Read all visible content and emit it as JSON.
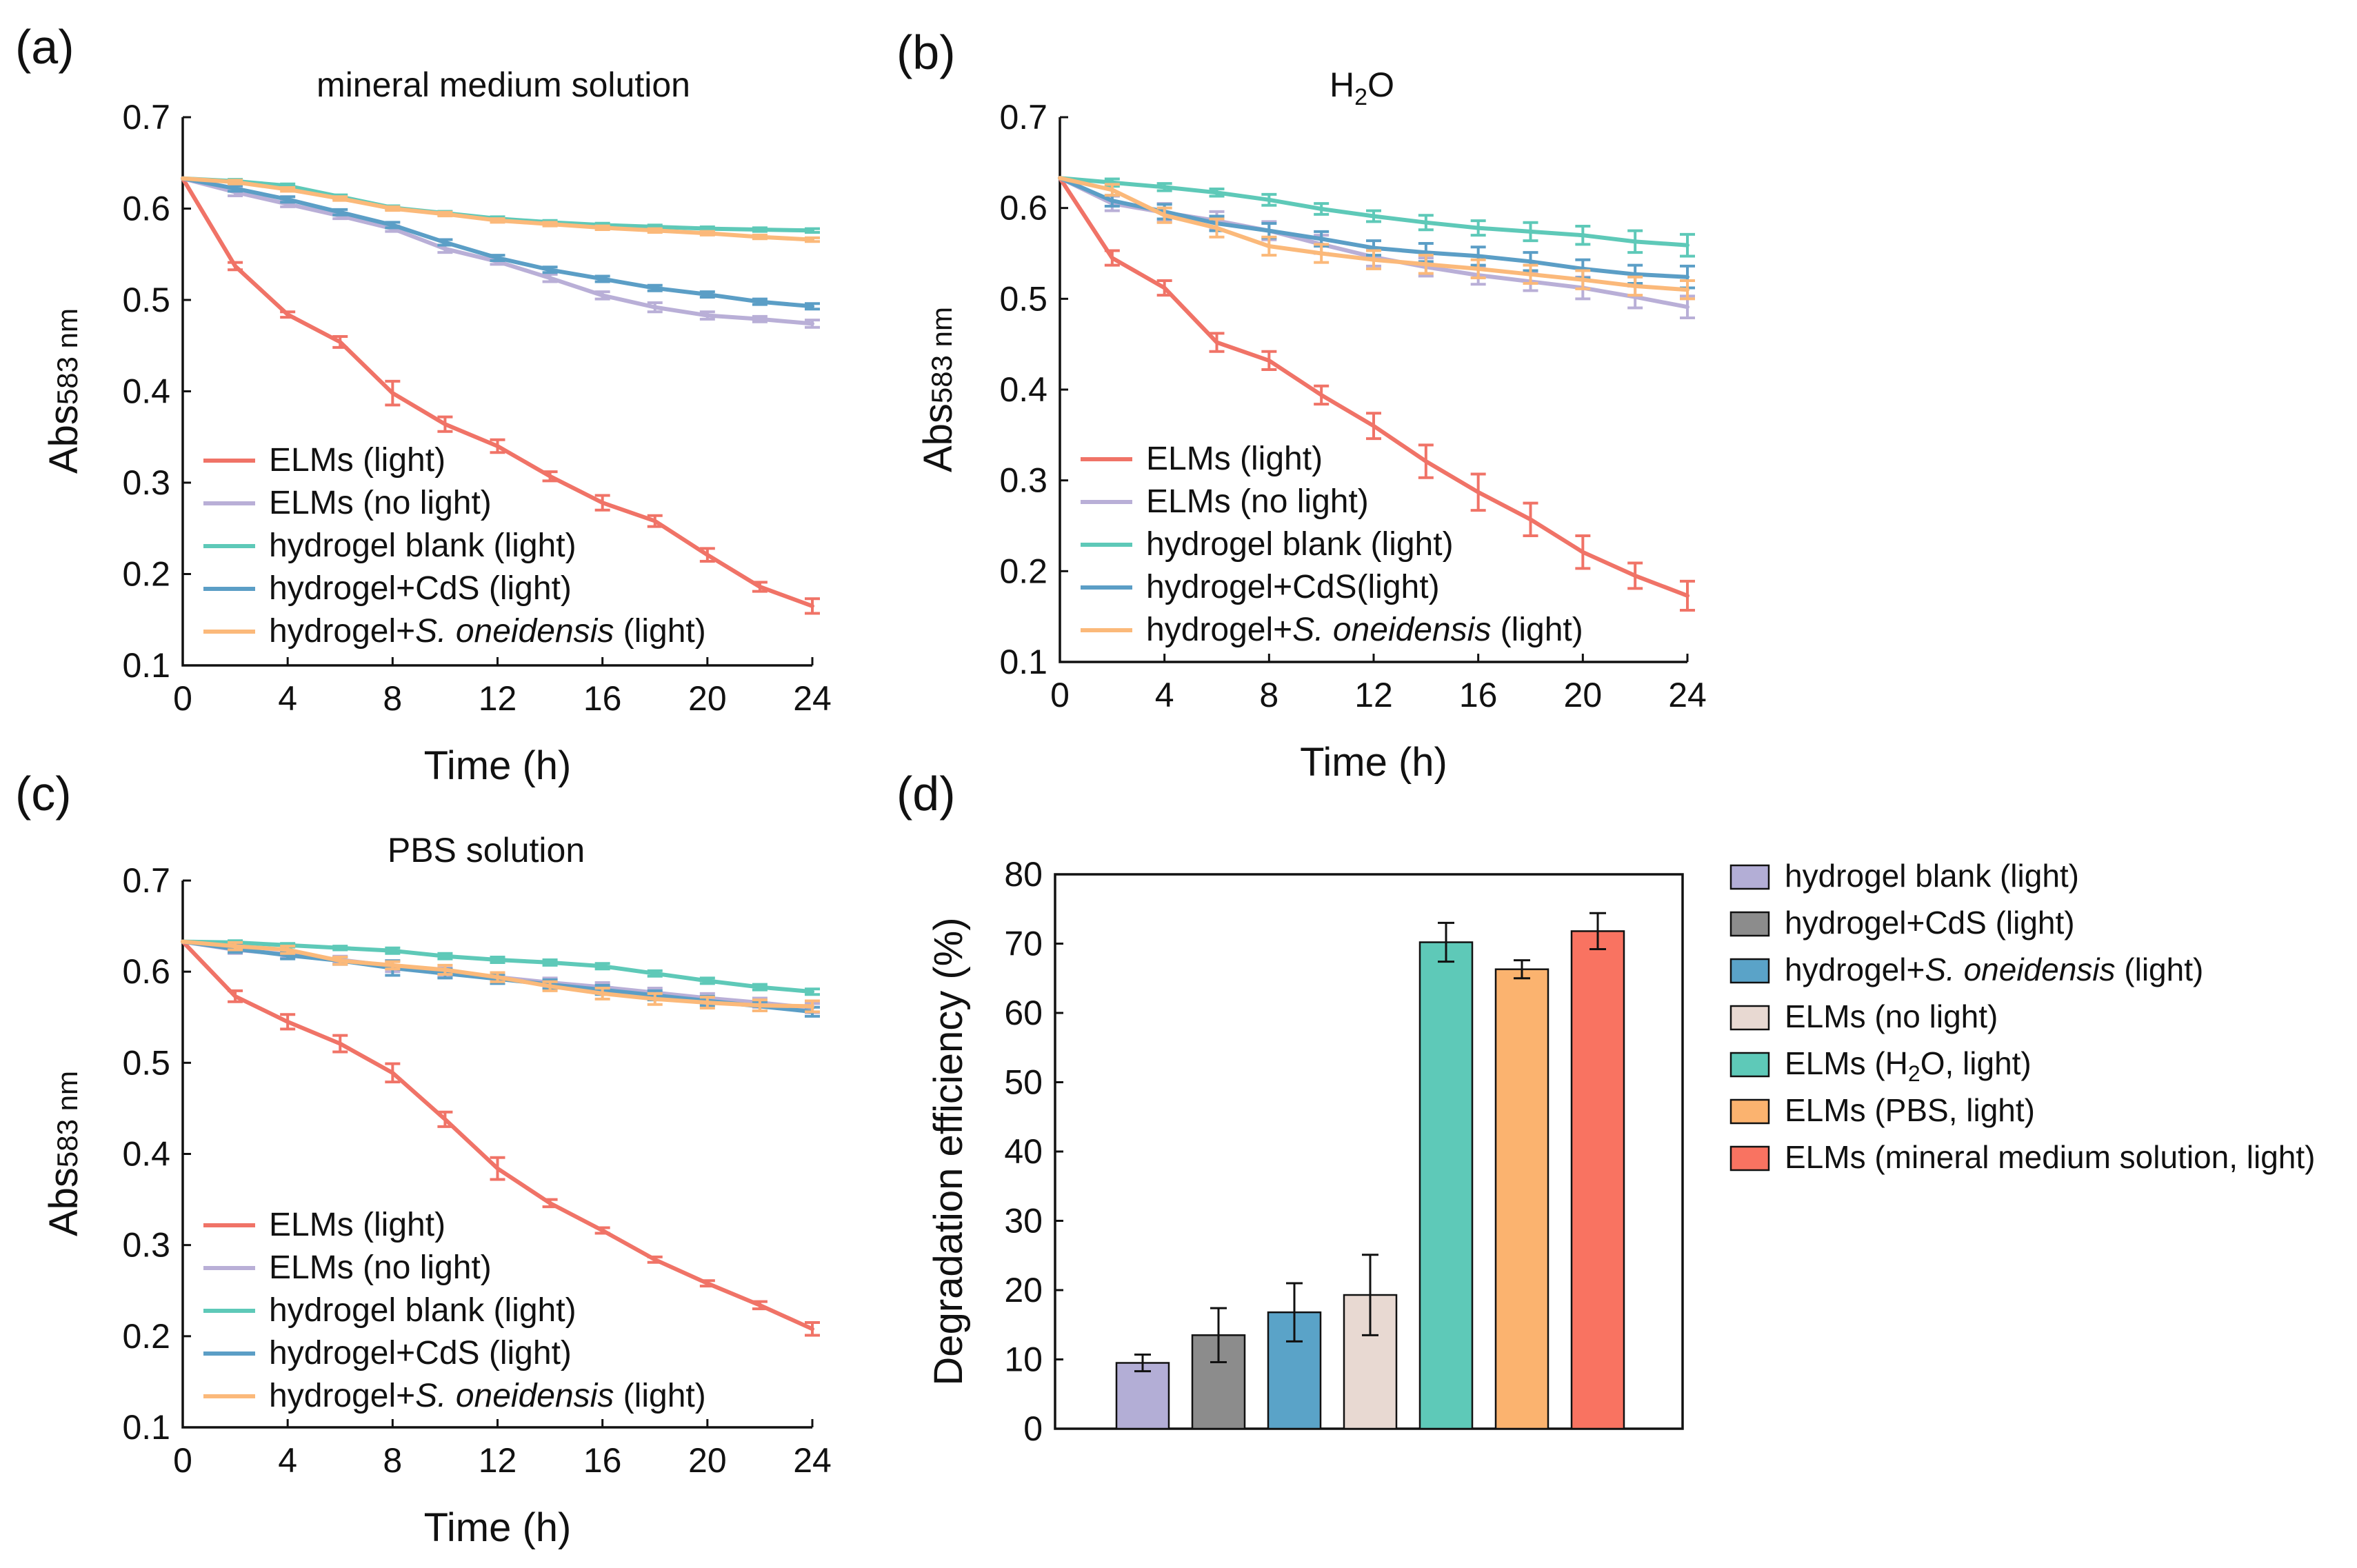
{
  "chart_data": [
    {
      "panel_label": "(a)",
      "type": "line",
      "title": "mineral medium solution",
      "xlabel": "Time (h)",
      "ylabel": "Abs583 nm",
      "ylabel_parts": {
        "prefix": "Abs",
        "sub": "583",
        "suffix": " nm"
      },
      "xlim": [
        0,
        24
      ],
      "ylim": [
        0.1,
        0.7
      ],
      "xticks": [
        0,
        4,
        8,
        12,
        16,
        20,
        24
      ],
      "yticks": [
        0.1,
        0.2,
        0.3,
        0.4,
        0.5,
        0.6,
        0.7
      ],
      "legend_position": "bottom-left",
      "x": [
        0,
        2,
        4,
        6,
        8,
        10,
        12,
        14,
        16,
        18,
        20,
        22,
        24
      ],
      "series": [
        {
          "name": "ELMs (light)",
          "legend": [
            {
              "t": "ELMs (light)",
              "italic": false
            }
          ],
          "color": "#f07367",
          "values": [
            0.633,
            0.537,
            0.484,
            0.454,
            0.398,
            0.364,
            0.34,
            0.307,
            0.278,
            0.258,
            0.221,
            0.186,
            0.165
          ],
          "errors": [
            0,
            0.004,
            0.003,
            0.006,
            0.013,
            0.008,
            0.007,
            0.005,
            0.008,
            0.006,
            0.007,
            0.005,
            0.008
          ]
        },
        {
          "name": "ELMs (no light)",
          "legend": [
            {
              "t": "ELMs (no light)",
              "italic": false
            }
          ],
          "color": "#b9afd7",
          "values": [
            0.633,
            0.618,
            0.605,
            0.592,
            0.578,
            0.556,
            0.542,
            0.524,
            0.505,
            0.492,
            0.483,
            0.479,
            0.474
          ],
          "errors": [
            0,
            0.004,
            0.003,
            0.003,
            0.003,
            0.004,
            0.003,
            0.004,
            0.004,
            0.005,
            0.004,
            0.003,
            0.004
          ]
        },
        {
          "name": "hydrogel blank (light)",
          "legend": [
            {
              "t": "hydrogel blank (light)",
              "italic": false
            }
          ],
          "color": "#5ec9b8",
          "values": [
            0.633,
            0.63,
            0.625,
            0.613,
            0.601,
            0.595,
            0.589,
            0.585,
            0.582,
            0.58,
            0.578,
            0.577,
            0.576
          ],
          "errors": [
            0,
            0.002,
            0.002,
            0.002,
            0.002,
            0.002,
            0.002,
            0.002,
            0.002,
            0.002,
            0.002,
            0.002,
            0.002
          ]
        },
        {
          "name": "hydrogel+CdS (light)",
          "legend": [
            {
              "t": "hydrogel+CdS (light)",
              "italic": false
            }
          ],
          "color": "#5b9ec6",
          "values": [
            0.633,
            0.622,
            0.61,
            0.596,
            0.582,
            0.563,
            0.546,
            0.533,
            0.523,
            0.513,
            0.506,
            0.498,
            0.493
          ],
          "errors": [
            0,
            0.003,
            0.003,
            0.003,
            0.003,
            0.003,
            0.003,
            0.003,
            0.003,
            0.003,
            0.003,
            0.003,
            0.003
          ]
        },
        {
          "name": "hydrogel+S. oneidensis (light)",
          "legend": [
            {
              "t": "hydrogel+",
              "italic": false
            },
            {
              "t": "S. oneidensis",
              "italic": true
            },
            {
              "t": " (light)",
              "italic": false
            }
          ],
          "color": "#fbb97a",
          "values": [
            0.633,
            0.629,
            0.621,
            0.611,
            0.6,
            0.594,
            0.587,
            0.583,
            0.579,
            0.576,
            0.573,
            0.569,
            0.566
          ],
          "errors": [
            0,
            0.002,
            0.002,
            0.002,
            0.002,
            0.002,
            0.002,
            0.002,
            0.002,
            0.002,
            0.002,
            0.002,
            0.002
          ]
        }
      ]
    },
    {
      "panel_label": "(b)",
      "type": "line",
      "title": "H2O",
      "title_parts": {
        "prefix": "H",
        "sub": "2",
        "suffix": "O"
      },
      "xlabel": "Time (h)",
      "ylabel": "Abs583 nm",
      "ylabel_parts": {
        "prefix": "Abs",
        "sub": "583",
        "suffix": " nm"
      },
      "xlim": [
        0,
        24
      ],
      "ylim": [
        0.1,
        0.7
      ],
      "xticks": [
        0,
        4,
        8,
        12,
        16,
        20,
        24
      ],
      "yticks": [
        0.1,
        0.2,
        0.3,
        0.4,
        0.5,
        0.6,
        0.7
      ],
      "legend_position": "bottom-left",
      "x": [
        0,
        2,
        4,
        6,
        8,
        10,
        12,
        14,
        16,
        18,
        20,
        22,
        24
      ],
      "series": [
        {
          "name": "ELMs (light)",
          "legend": [
            {
              "t": "ELMs (light)",
              "italic": false
            }
          ],
          "color": "#f07367",
          "values": [
            0.633,
            0.545,
            0.512,
            0.452,
            0.432,
            0.394,
            0.36,
            0.321,
            0.287,
            0.257,
            0.221,
            0.195,
            0.173
          ],
          "errors": [
            0,
            0.008,
            0.008,
            0.01,
            0.01,
            0.01,
            0.014,
            0.018,
            0.02,
            0.018,
            0.018,
            0.014,
            0.016
          ]
        },
        {
          "name": "ELMs (no light)",
          "legend": [
            {
              "t": "ELMs (no light)",
              "italic": false
            }
          ],
          "color": "#b9afd7",
          "values": [
            0.633,
            0.605,
            0.595,
            0.586,
            0.575,
            0.56,
            0.546,
            0.535,
            0.526,
            0.519,
            0.512,
            0.502,
            0.491
          ],
          "errors": [
            0,
            0.008,
            0.01,
            0.01,
            0.01,
            0.01,
            0.01,
            0.01,
            0.01,
            0.01,
            0.012,
            0.012,
            0.012
          ]
        },
        {
          "name": "hydrogel blank (light)",
          "legend": [
            {
              "t": "hydrogel blank (light)",
              "italic": false
            }
          ],
          "color": "#5ec9b8",
          "values": [
            0.633,
            0.628,
            0.623,
            0.617,
            0.609,
            0.599,
            0.591,
            0.584,
            0.578,
            0.574,
            0.57,
            0.563,
            0.559
          ],
          "errors": [
            0,
            0.004,
            0.004,
            0.004,
            0.006,
            0.006,
            0.006,
            0.008,
            0.008,
            0.01,
            0.01,
            0.012,
            0.012
          ]
        },
        {
          "name": "hydrogel+CdS(light)",
          "legend": [
            {
              "t": "hydrogel+CdS(light)",
              "italic": false
            }
          ],
          "color": "#5b9ec6",
          "values": [
            0.633,
            0.608,
            0.596,
            0.583,
            0.575,
            0.566,
            0.556,
            0.551,
            0.547,
            0.541,
            0.533,
            0.527,
            0.524
          ],
          "errors": [
            0,
            0.006,
            0.008,
            0.008,
            0.008,
            0.008,
            0.008,
            0.01,
            0.01,
            0.01,
            0.01,
            0.01,
            0.012
          ]
        },
        {
          "name": "hydrogel+S. oneidensis (light)",
          "legend": [
            {
              "t": "hydrogel+",
              "italic": false
            },
            {
              "t": "S. oneidensis",
              "italic": true
            },
            {
              "t": " (light)",
              "italic": false
            }
          ],
          "color": "#fbb97a",
          "values": [
            0.633,
            0.62,
            0.592,
            0.578,
            0.558,
            0.55,
            0.543,
            0.538,
            0.533,
            0.527,
            0.521,
            0.514,
            0.51
          ],
          "errors": [
            0,
            0.006,
            0.008,
            0.01,
            0.01,
            0.01,
            0.01,
            0.01,
            0.01,
            0.01,
            0.01,
            0.01,
            0.01
          ]
        }
      ]
    },
    {
      "panel_label": "(c)",
      "type": "line",
      "title": "PBS solution",
      "xlabel": "Time (h)",
      "ylabel": "Abs583 nm",
      "ylabel_parts": {
        "prefix": "Abs",
        "sub": "583",
        "suffix": " nm"
      },
      "xlim": [
        0,
        24
      ],
      "ylim": [
        0.1,
        0.7
      ],
      "xticks": [
        0,
        4,
        8,
        12,
        16,
        20,
        24
      ],
      "yticks": [
        0.1,
        0.2,
        0.3,
        0.4,
        0.5,
        0.6,
        0.7
      ],
      "legend_position": "bottom-left",
      "x": [
        0,
        2,
        4,
        6,
        8,
        10,
        12,
        14,
        16,
        18,
        20,
        22,
        24
      ],
      "series": [
        {
          "name": "ELMs (light)",
          "legend": [
            {
              "t": "ELMs (light)",
              "italic": false
            }
          ],
          "color": "#f07367",
          "values": [
            0.633,
            0.573,
            0.545,
            0.521,
            0.489,
            0.438,
            0.384,
            0.346,
            0.316,
            0.284,
            0.258,
            0.234,
            0.208
          ],
          "errors": [
            0,
            0.006,
            0.008,
            0.009,
            0.01,
            0.008,
            0.012,
            0.004,
            0.003,
            0.003,
            0.003,
            0.004,
            0.007
          ]
        },
        {
          "name": "ELMs (no light)",
          "legend": [
            {
              "t": "ELMs (no light)",
              "italic": false
            }
          ],
          "color": "#b9afd7",
          "values": [
            0.633,
            0.624,
            0.619,
            0.613,
            0.606,
            0.599,
            0.594,
            0.588,
            0.583,
            0.577,
            0.571,
            0.566,
            0.56
          ],
          "errors": [
            0,
            0.004,
            0.004,
            0.004,
            0.006,
            0.005,
            0.005,
            0.005,
            0.005,
            0.005,
            0.005,
            0.005,
            0.005
          ]
        },
        {
          "name": "hydrogel blank (light)",
          "legend": [
            {
              "t": "hydrogel blank (light)",
              "italic": false
            }
          ],
          "color": "#5ec9b8",
          "values": [
            0.633,
            0.632,
            0.629,
            0.626,
            0.623,
            0.617,
            0.613,
            0.61,
            0.606,
            0.598,
            0.59,
            0.583,
            0.578
          ],
          "errors": [
            0,
            0.002,
            0.002,
            0.002,
            0.003,
            0.003,
            0.003,
            0.003,
            0.003,
            0.003,
            0.003,
            0.003,
            0.003
          ]
        },
        {
          "name": "hydrogel+CdS (light)",
          "legend": [
            {
              "t": "hydrogel+CdS (light)",
              "italic": false
            }
          ],
          "color": "#5b9ec6",
          "values": [
            0.633,
            0.625,
            0.618,
            0.612,
            0.604,
            0.598,
            0.592,
            0.586,
            0.58,
            0.574,
            0.568,
            0.562,
            0.556
          ],
          "errors": [
            0,
            0.004,
            0.004,
            0.004,
            0.008,
            0.005,
            0.005,
            0.005,
            0.005,
            0.005,
            0.005,
            0.005,
            0.005
          ]
        },
        {
          "name": "hydrogel+S. oneidensis (light)",
          "legend": [
            {
              "t": "hydrogel+",
              "italic": false
            },
            {
              "t": "S. oneidensis",
              "italic": true
            },
            {
              "t": " (light)",
              "italic": false
            }
          ],
          "color": "#fbb97a",
          "values": [
            0.633,
            0.628,
            0.624,
            0.612,
            0.607,
            0.602,
            0.594,
            0.584,
            0.576,
            0.57,
            0.566,
            0.563,
            0.562
          ],
          "errors": [
            0,
            0.004,
            0.004,
            0.004,
            0.004,
            0.005,
            0.005,
            0.005,
            0.006,
            0.006,
            0.006,
            0.006,
            0.006
          ]
        }
      ]
    },
    {
      "panel_label": "(d)",
      "type": "bar",
      "title": "",
      "xlabel": "",
      "ylabel": "Degradation efficiency (%)",
      "ylim": [
        0,
        80
      ],
      "yticks": [
        0,
        10,
        20,
        30,
        40,
        50,
        60,
        70,
        80
      ],
      "legend_position": "right",
      "categories": [
        "hydrogel blank (light)",
        "hydrogel+CdS (light)",
        "hydrogel+S. oneidensis (light)",
        "ELMs (no light)",
        "ELMs (H2O, light)",
        "ELMs (PBS, light)",
        "ELMs (mineral medium solution, light)"
      ],
      "legend": [
        [
          {
            "t": "hydrogel blank (light)",
            "s": "n"
          }
        ],
        [
          {
            "t": "hydrogel+CdS (light)",
            "s": "n"
          }
        ],
        [
          {
            "t": "hydrogel+",
            "s": "n"
          },
          {
            "t": "S. oneidensis",
            "s": "i"
          },
          {
            "t": " (light)",
            "s": "n"
          }
        ],
        [
          {
            "t": "ELMs (no light)",
            "s": "n"
          }
        ],
        [
          {
            "t": "ELMs (H",
            "s": "n"
          },
          {
            "t": "2",
            "s": "sub"
          },
          {
            "t": "O, light)",
            "s": "n"
          }
        ],
        [
          {
            "t": "ELMs (PBS, light)",
            "s": "n"
          }
        ],
        [
          {
            "t": "ELMs (mineral medium solution, light)",
            "s": "n"
          }
        ]
      ],
      "values": [
        9.5,
        13.5,
        16.8,
        19.3,
        70.2,
        66.3,
        71.8
      ],
      "errors": [
        1.2,
        3.9,
        4.2,
        5.8,
        2.8,
        1.3,
        2.6
      ],
      "colors": [
        "#b3aed6",
        "#8c8c8c",
        "#5aa3c8",
        "#e8d9d2",
        "#5ec9b8",
        "#fbb36f",
        "#f97361"
      ]
    }
  ]
}
